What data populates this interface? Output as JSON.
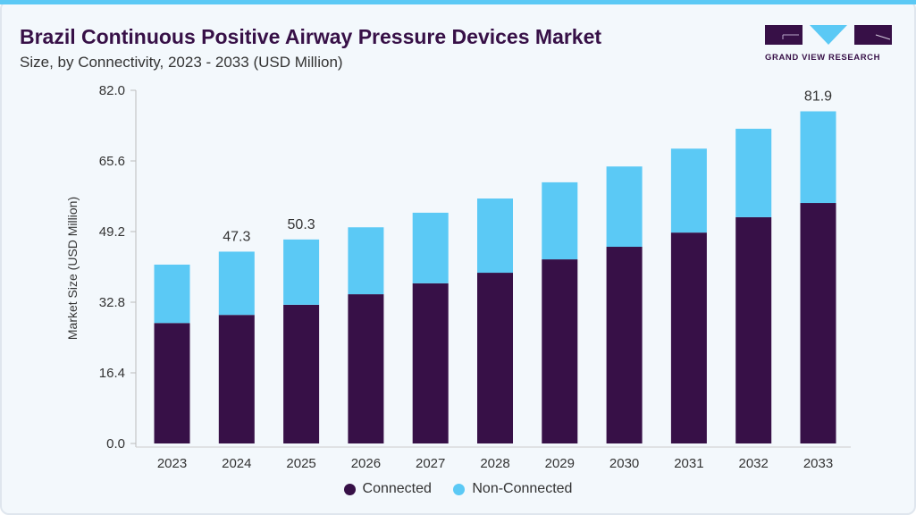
{
  "header": {
    "title": "Brazil Continuous Positive Airway Pressure Devices Market",
    "subtitle": "Size, by Connectivity, 2023 - 2033 (USD Million)",
    "logo_text": "GRAND VIEW RESEARCH"
  },
  "colors": {
    "connected": "#371047",
    "non_connected": "#5bc9f5",
    "accent": "#5bc9f5"
  },
  "chart_data": {
    "type": "bar",
    "stacked": true,
    "title": "Brazil Continuous Positive Airway Pressure Devices Market",
    "subtitle": "Size, by Connectivity, 2023 - 2033 (USD Million)",
    "xlabel": "",
    "ylabel": "Market Size (USD Million)",
    "ylim": [
      0,
      82
    ],
    "yticks": [
      "0.0",
      "16.4",
      "32.8",
      "49.2",
      "65.6",
      "82.0"
    ],
    "categories": [
      "2023",
      "2024",
      "2025",
      "2026",
      "2027",
      "2028",
      "2029",
      "2030",
      "2031",
      "2032",
      "2033"
    ],
    "series": [
      {
        "name": "Connected",
        "values": [
          29.7,
          31.7,
          34.2,
          36.8,
          39.5,
          42.1,
          45.4,
          48.5,
          52.0,
          55.8,
          59.3
        ]
      },
      {
        "name": "Non-Connected",
        "values": [
          14.4,
          15.6,
          16.1,
          16.5,
          17.4,
          18.3,
          19.0,
          19.8,
          20.7,
          21.8,
          22.6
        ]
      }
    ],
    "data_labels": {
      "2024": "47.3",
      "2025": "50.3",
      "2033": "81.9"
    },
    "legend": [
      "Connected",
      "Non-Connected"
    ],
    "legend_position": "bottom",
    "grid": false
  }
}
